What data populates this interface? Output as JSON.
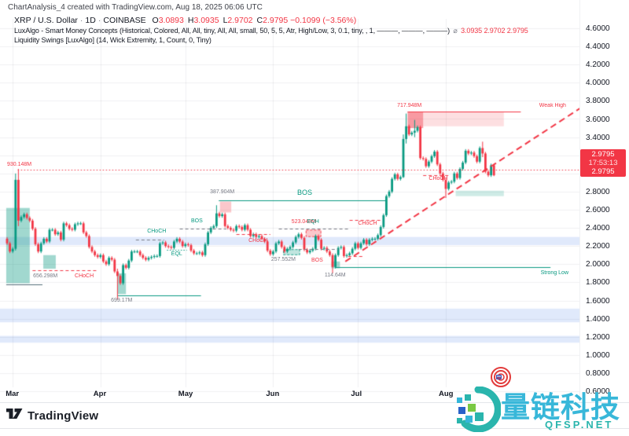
{
  "title_bar": {
    "top_note": "ChartAnalysis_4 created with TradingView.com, Aug 18, 2025 06:06 UTC"
  },
  "legend": {
    "symbol": "XRP / U.S. Dollar",
    "interval": "1D",
    "exchange": "COINBASE",
    "sep": "·",
    "ohlc": [
      {
        "k": "O",
        "v": "3.0893"
      },
      {
        "k": "H",
        "v": "3.0935"
      },
      {
        "k": "L",
        "v": "2.9702"
      },
      {
        "k": "C",
        "v": "2.9795"
      }
    ],
    "change": "−0.1099 (−3.56%)",
    "smc_label": "LuxAlgo - Smart Money Concepts (Historical, Colored, All, All, tiny, All, All, small, 50, 5, 5, Atr, High/Low, 3, 0.1, tiny, , 1, ———, ———, ———)",
    "smc_marker": "⌀",
    "smc_values": "3.0935  2.9702  2.9795",
    "liq_label": "Liquidity Swings [LuxAlgo] (14, Wick Extremity, 1, Count, 0, Tiny)"
  },
  "price_axis": {
    "max": 4.6,
    "min": 0.6,
    "step": 0.2,
    "decimals": 4
  },
  "price_tag": {
    "indicator_value": "2.9795",
    "countdown": "17:53:13",
    "price": "2.9795"
  },
  "time_axis": {
    "months": [
      {
        "label": "Mar",
        "d": 2
      },
      {
        "label": "Apr",
        "d": 33
      },
      {
        "label": "May",
        "d": 63
      },
      {
        "label": "Jun",
        "d": 94
      },
      {
        "label": "Jul",
        "d": 124
      },
      {
        "label": "Aug",
        "d": 155
      }
    ]
  },
  "chart_data": {
    "type": "candlestick",
    "symbol": "XRP/USD",
    "timeframe": "1D",
    "ylim": [
      0.6,
      4.6
    ],
    "current_price": 2.9795,
    "first_open": 2.28,
    "closes": [
      2.23,
      2.14,
      2.17,
      2.93,
      2.48,
      2.52,
      2.55,
      2.51,
      2.48,
      2.39,
      2.22,
      2.14,
      2.23,
      2.28,
      2.25,
      2.38,
      2.38,
      2.33,
      2.35,
      2.27,
      2.45,
      2.43,
      2.39,
      2.38,
      2.44,
      2.45,
      2.45,
      2.35,
      2.31,
      2.19,
      2.14,
      2.1,
      2.08,
      2.1,
      2.03,
      2.0,
      2.07,
      2.05,
      1.92,
      1.87,
      1.79,
      1.99,
      1.96,
      2.04,
      2.14,
      2.14,
      2.14,
      2.1,
      2.07,
      2.05,
      2.07,
      2.08,
      2.09,
      2.09,
      2.23,
      2.24,
      2.2,
      2.19,
      2.18,
      2.25,
      2.28,
      2.25,
      2.2,
      2.22,
      2.21,
      2.15,
      2.12,
      2.12,
      2.13,
      2.1,
      2.22,
      2.35,
      2.4,
      2.42,
      2.56,
      2.53,
      2.55,
      2.42,
      2.4,
      2.38,
      2.37,
      2.42,
      2.41,
      2.38,
      2.43,
      2.38,
      2.31,
      2.33,
      2.3,
      2.31,
      2.28,
      2.25,
      2.15,
      2.11,
      2.14,
      2.23,
      2.25,
      2.19,
      2.14,
      2.17,
      2.19,
      2.24,
      2.3,
      2.33,
      2.29,
      2.16,
      2.13,
      2.15,
      2.17,
      2.31,
      2.27,
      2.17,
      2.18,
      2.14,
      2.1,
      1.97,
      2.1,
      2.18,
      2.19,
      2.09,
      2.1,
      2.12,
      2.17,
      2.23,
      2.18,
      2.23,
      2.27,
      2.22,
      2.27,
      2.28,
      2.28,
      2.32,
      2.41,
      2.54,
      2.75,
      2.8,
      2.94,
      2.99,
      2.94,
      2.96,
      3.38,
      3.52,
      3.43,
      3.45,
      3.47,
      3.51,
      3.17,
      3.16,
      3.08,
      3.13,
      3.19,
      3.24,
      3.1,
      3.0,
      2.93,
      2.83,
      2.9,
      2.91,
      3.0,
      2.95,
      3.05,
      3.12,
      3.25,
      3.22,
      3.23,
      3.19,
      3.13,
      3.28,
      3.22,
      3.02,
      2.98,
      3.09,
      2.9795
    ],
    "wick_overrides": {
      "3": [
        3.0,
        2.15
      ],
      "4": [
        3.05,
        2.42
      ],
      "39": [
        1.95,
        1.61
      ],
      "74": [
        2.65,
        2.4
      ],
      "115": [
        2.12,
        1.9
      ],
      "140": [
        3.43,
        2.95
      ],
      "141": [
        3.66,
        3.33
      ],
      "144": [
        3.59,
        3.4
      ],
      "155": [
        2.95,
        2.73
      ],
      "168": [
        3.35,
        3.18
      ],
      "172": [
        3.0935,
        2.9702
      ]
    },
    "bands": [
      {
        "p1": 2.3,
        "p2": 2.21
      },
      {
        "p1": 1.51,
        "p2": 1.36
      },
      {
        "p1": 1.21,
        "p2": 1.135
      }
    ],
    "boxes": [
      {
        "d1": -0.3,
        "d2": 8,
        "p1": 2.62,
        "p2": 1.79,
        "c": "teal",
        "a": 0.38
      },
      {
        "d1": 12.8,
        "d2": 17.2,
        "p1": 2.1,
        "p2": 1.95,
        "c": "teal",
        "a": 0.38
      },
      {
        "d1": 39,
        "d2": 42,
        "p1": 1.9,
        "p2": 1.67,
        "c": "teal",
        "a": 0.38
      },
      {
        "d1": 75.2,
        "d2": 79.2,
        "p1": 2.69,
        "p2": 2.57,
        "c": "red",
        "a": 0.28
      },
      {
        "d1": 97.5,
        "d2": 103.5,
        "p1": 2.165,
        "p2": 2.1,
        "c": "teal",
        "a": 0.25,
        "dash": true
      },
      {
        "d1": 105.5,
        "d2": 111,
        "p1": 2.38,
        "p2": 2.3,
        "c": "red",
        "a": 0.28,
        "dash": true
      },
      {
        "d1": 114.6,
        "d2": 117.6,
        "p1": 2.03,
        "p2": 1.955,
        "c": "teal",
        "a": 0.38
      },
      {
        "d1": 141.5,
        "d2": 147,
        "p1": 3.68,
        "p2": 3.5,
        "c": "red",
        "a": 0.5
      },
      {
        "d1": 147,
        "d2": 175.5,
        "p1": 3.68,
        "p2": 3.52,
        "c": "red",
        "a": 0.16
      },
      {
        "d1": 158.5,
        "d2": 175.5,
        "p1": 2.81,
        "p2": 2.75,
        "c": "teal",
        "a": 0.2
      }
    ],
    "zone_lines": [
      {
        "d1": -0.3,
        "d2": 12.5,
        "p": 1.78,
        "c": "#546e7a"
      },
      {
        "d1": 39,
        "d2": 68.5,
        "p": 1.66,
        "c": "teal"
      },
      {
        "d1": 116,
        "d2": 192,
        "p": 1.965,
        "c": "teal"
      },
      {
        "d1": 74.8,
        "d2": 134,
        "p": 2.705,
        "c": "teal"
      },
      {
        "d1": 141.5,
        "d2": 181.5,
        "p": 3.685,
        "c": "red"
      }
    ],
    "dashed_lines": [
      {
        "d1": 9,
        "d2": 32,
        "p": 1.937,
        "c": "red"
      },
      {
        "d1": 45.5,
        "d2": 55.5,
        "p": 2.27,
        "c": "gray"
      },
      {
        "d1": 56.5,
        "d2": 63.5,
        "p": 2.16,
        "c": "teal",
        "dot": true
      },
      {
        "d1": 61,
        "d2": 77.5,
        "p": 2.39,
        "c": "gray"
      },
      {
        "d1": 81,
        "d2": 93,
        "p": 2.335,
        "c": "red"
      },
      {
        "d1": 96,
        "d2": 120.5,
        "p": 2.39,
        "c": "gray"
      },
      {
        "d1": 103,
        "d2": 117,
        "p": 2.165,
        "c": "gray"
      },
      {
        "d1": 120.5,
        "d2": 125.5,
        "p": 2.09,
        "c": "red"
      },
      {
        "d1": 121,
        "d2": 132,
        "p": 2.49,
        "c": "red"
      },
      {
        "d1": 147,
        "d2": 156.5,
        "p": 2.98,
        "c": "red"
      }
    ],
    "dotted_hline": {
      "d1": 3.8,
      "p": 3.04,
      "c": "red"
    },
    "trendline": {
      "d1": 119.5,
      "p1": 2.03,
      "d2": 204,
      "p2": 3.75,
      "c": "red"
    },
    "labels": [
      {
        "d": 0,
        "p": 3.09,
        "t": "930.148M",
        "c": "red"
      },
      {
        "d": 9.2,
        "p": 1.867,
        "t": "656.298M",
        "c": "gray"
      },
      {
        "d": 23.9,
        "p": 1.867,
        "t": "CHoCH",
        "c": "red"
      },
      {
        "d": 36.7,
        "p": 1.6,
        "t": "699.17M",
        "c": "gray"
      },
      {
        "d": 49.5,
        "p": 2.355,
        "t": "CHoCH",
        "c": "teal"
      },
      {
        "d": 58,
        "p": 2.11,
        "t": "EQL",
        "c": "teal"
      },
      {
        "d": 65,
        "p": 2.47,
        "t": "BOS",
        "c": "teal"
      },
      {
        "d": 71.7,
        "p": 2.79,
        "t": "387.904M",
        "c": "gray"
      },
      {
        "d": 102.5,
        "p": 2.79,
        "t": "BOS",
        "c": "teal",
        "big": true
      },
      {
        "d": 85.3,
        "p": 2.25,
        "t": "CHoCH",
        "c": "red"
      },
      {
        "d": 100.5,
        "p": 2.465,
        "t": "523.048M",
        "c": "red"
      },
      {
        "d": 106,
        "p": 2.465,
        "t": "EQH",
        "c": "teal"
      },
      {
        "d": 93.3,
        "p": 2.045,
        "t": "257.552M",
        "c": "gray"
      },
      {
        "d": 107.5,
        "p": 2.04,
        "t": "BOS",
        "c": "red"
      },
      {
        "d": 112.2,
        "p": 1.87,
        "t": "114.64M",
        "c": "gray"
      },
      {
        "d": 188.5,
        "p": 1.895,
        "t": "Strong Low",
        "c": "teal"
      },
      {
        "d": 124,
        "p": 2.44,
        "t": "CHoCH",
        "c": "red"
      },
      {
        "d": 137.8,
        "p": 3.745,
        "t": "717.948M",
        "c": "red"
      },
      {
        "d": 188,
        "p": 3.745,
        "t": "Weak High",
        "c": "red"
      },
      {
        "d": 149,
        "p": 2.935,
        "t": "CHoCH",
        "c": "red"
      }
    ]
  },
  "watermark": {
    "cn": "量链科技",
    "en": "QFSP.NET"
  },
  "attribution": {
    "brand": "TradingView"
  },
  "colors": {
    "up": "#089981",
    "down": "#f23645",
    "teal": "#089981",
    "red": "#f23645",
    "gray": "#787b86",
    "band": "rgba(62,121,229,0.16)",
    "grid": "rgba(42,46,57,0.07)",
    "axis_text": "#131722",
    "tag_bg": "#f23645"
  }
}
